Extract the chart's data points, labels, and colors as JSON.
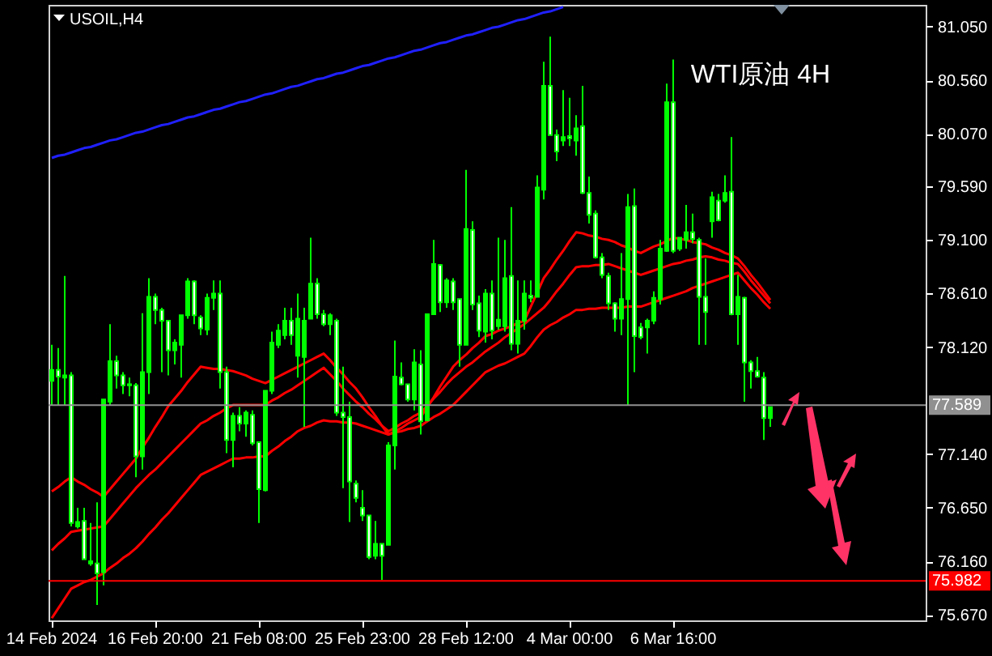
{
  "chart_data": {
    "type": "candlestick",
    "title": "USOIL,H4",
    "annotations": [
      "WTI原油 4H"
    ],
    "categories": [
      "14 Feb 2024",
      null,
      null,
      null,
      null,
      null,
      null,
      null,
      null,
      null,
      null,
      null,
      null,
      null,
      null,
      null,
      "16 Feb 20:00",
      null,
      null,
      null,
      null,
      null,
      null,
      null,
      null,
      null,
      null,
      null,
      null,
      null,
      null,
      null,
      "21 Feb 08:00",
      null,
      null,
      null,
      null,
      null,
      null,
      null,
      null,
      null,
      null,
      null,
      null,
      null,
      null,
      null,
      "25 Feb 23:00",
      null,
      null,
      null,
      null,
      null,
      null,
      null,
      null,
      null,
      null,
      null,
      null,
      null,
      null,
      null,
      "28 Feb 12:00",
      null,
      null,
      null,
      null,
      null,
      null,
      null,
      null,
      null,
      null,
      null,
      null,
      null,
      null,
      null,
      "4 Mar 00:00",
      null,
      null,
      null,
      null,
      null,
      null,
      null,
      null,
      null,
      null,
      null,
      null,
      null,
      null,
      null,
      "6 Mar 16:00",
      null,
      null,
      null,
      null,
      null,
      null,
      null,
      null,
      null,
      null,
      null,
      null,
      null,
      null,
      null
    ],
    "color": "#00ff00",
    "ohlc": [
      [
        77.81,
        78.14,
        77.59,
        77.91
      ],
      [
        77.91,
        78.11,
        77.59,
        77.85
      ],
      [
        77.84,
        78.77,
        77.59,
        77.86
      ],
      [
        77.86,
        77.89,
        76.48,
        76.51
      ],
      [
        76.48,
        76.65,
        76.46,
        76.52
      ],
      [
        76.53,
        76.65,
        76.18,
        76.18
      ],
      [
        76.14,
        76.51,
        76.12,
        76.16
      ],
      [
        76.14,
        76.7,
        75.76,
        76.05
      ],
      [
        76.06,
        77.64,
        75.94,
        77.64
      ],
      [
        77.62,
        78.33,
        77.59,
        77.99
      ],
      [
        77.99,
        78.04,
        77.74,
        77.86
      ],
      [
        77.86,
        77.89,
        77.69,
        77.77
      ],
      [
        77.77,
        77.84,
        77.67,
        77.78
      ],
      [
        77.77,
        77.79,
        76.93,
        77.12
      ],
      [
        77.12,
        78.43,
        77.0,
        77.89
      ],
      [
        77.89,
        78.75,
        77.69,
        78.58
      ],
      [
        78.58,
        78.61,
        78.33,
        78.46
      ],
      [
        78.46,
        78.48,
        77.89,
        78.36
      ],
      [
        78.36,
        78.36,
        77.86,
        78.09
      ],
      [
        78.09,
        78.19,
        77.96,
        78.16
      ],
      [
        78.14,
        78.41,
        77.84,
        78.41
      ],
      [
        78.41,
        78.75,
        78.38,
        78.72
      ],
      [
        78.72,
        78.73,
        78.33,
        78.41
      ],
      [
        78.39,
        78.41,
        78.23,
        78.29
      ],
      [
        78.28,
        78.61,
        78.23,
        78.57
      ],
      [
        78.57,
        78.73,
        78.46,
        78.61
      ],
      [
        78.61,
        78.73,
        77.74,
        77.89
      ],
      [
        77.89,
        77.94,
        77.15,
        77.27
      ],
      [
        77.27,
        77.52,
        77.02,
        77.49
      ],
      [
        77.49,
        77.57,
        77.35,
        77.42
      ],
      [
        77.42,
        77.54,
        77.3,
        77.52
      ],
      [
        77.5,
        77.54,
        77.22,
        77.24
      ],
      [
        77.25,
        77.25,
        76.51,
        76.82
      ],
      [
        76.81,
        77.72,
        76.8,
        77.72
      ],
      [
        77.72,
        78.26,
        77.69,
        78.16
      ],
      [
        78.14,
        78.33,
        78.11,
        78.27
      ],
      [
        78.23,
        78.48,
        78.19,
        78.36
      ],
      [
        78.36,
        78.48,
        78.14,
        78.23
      ],
      [
        78.04,
        78.61,
        77.84,
        78.38
      ],
      [
        78.03,
        78.48,
        77.39,
        78.36
      ],
      [
        78.38,
        79.12,
        78.38,
        78.7
      ],
      [
        78.7,
        78.75,
        78.38,
        78.42
      ],
      [
        78.42,
        78.46,
        78.31,
        78.33
      ],
      [
        78.33,
        78.43,
        78.23,
        78.41
      ],
      [
        78.36,
        78.38,
        77.49,
        77.52
      ],
      [
        77.52,
        77.94,
        76.83,
        77.48
      ],
      [
        77.48,
        77.62,
        76.52,
        76.89
      ],
      [
        76.87,
        76.9,
        76.7,
        76.74
      ],
      [
        76.65,
        76.81,
        76.53,
        76.58
      ],
      [
        76.58,
        76.58,
        76.18,
        76.2
      ],
      [
        76.21,
        76.53,
        76.18,
        76.32
      ],
      [
        76.32,
        76.32,
        75.99,
        76.21
      ],
      [
        76.31,
        77.25,
        76.31,
        77.22
      ],
      [
        77.22,
        78.18,
        77.0,
        77.85
      ],
      [
        77.84,
        77.98,
        77.77,
        77.78
      ],
      [
        77.78,
        77.78,
        77.62,
        77.64
      ],
      [
        77.64,
        78.1,
        77.54,
        77.98
      ],
      [
        77.96,
        78.09,
        77.32,
        77.44
      ],
      [
        77.45,
        78.42,
        77.44,
        78.42
      ],
      [
        78.42,
        79.1,
        78.42,
        78.88
      ],
      [
        78.87,
        78.88,
        78.44,
        78.53
      ],
      [
        78.53,
        78.75,
        78.48,
        78.73
      ],
      [
        78.72,
        78.75,
        78.46,
        78.53
      ],
      [
        78.56,
        78.56,
        77.94,
        78.14
      ],
      [
        78.14,
        79.74,
        78.14,
        79.2
      ],
      [
        79.19,
        79.27,
        78.46,
        78.51
      ],
      [
        78.52,
        78.59,
        78.21,
        78.27
      ],
      [
        78.26,
        78.65,
        78.16,
        78.61
      ],
      [
        78.61,
        78.73,
        78.19,
        78.27
      ],
      [
        78.31,
        79.12,
        78.28,
        78.37
      ],
      [
        78.31,
        79.1,
        78.26,
        78.75
      ],
      [
        78.77,
        79.4,
        78.09,
        78.15
      ],
      [
        78.15,
        78.73,
        78.06,
        78.36
      ],
      [
        78.36,
        78.73,
        78.28,
        78.61
      ],
      [
        78.59,
        78.73,
        78.53,
        78.57
      ],
      [
        78.58,
        79.69,
        78.58,
        79.58
      ],
      [
        79.56,
        80.73,
        79.47,
        80.51
      ],
      [
        80.51,
        80.96,
        80.06,
        80.06
      ],
      [
        80.06,
        80.11,
        79.82,
        79.91
      ],
      [
        80.01,
        80.47,
        79.96,
        80.04
      ],
      [
        80.05,
        80.4,
        79.96,
        80.03
      ],
      [
        80.01,
        80.24,
        79.87,
        80.12
      ],
      [
        80.14,
        80.51,
        79.52,
        79.53
      ],
      [
        79.53,
        79.68,
        79.25,
        79.33
      ],
      [
        79.34,
        79.37,
        78.93,
        78.94
      ],
      [
        78.94,
        78.98,
        78.75,
        78.78
      ],
      [
        78.77,
        78.8,
        78.46,
        78.52
      ],
      [
        78.52,
        78.53,
        78.26,
        78.38
      ],
      [
        78.38,
        78.98,
        78.23,
        78.56
      ],
      [
        78.56,
        79.52,
        77.59,
        79.4
      ],
      [
        79.41,
        79.57,
        77.89,
        78.22
      ],
      [
        78.3,
        78.34,
        78.19,
        78.21
      ],
      [
        78.3,
        78.38,
        78.06,
        78.36
      ],
      [
        78.36,
        78.63,
        78.33,
        78.57
      ],
      [
        78.56,
        79.1,
        78.51,
        79.02
      ],
      [
        79.0,
        80.53,
        78.99,
        80.36
      ],
      [
        80.36,
        80.75,
        78.98,
        79.0
      ],
      [
        79.02,
        79.12,
        79.0,
        79.12
      ],
      [
        79.1,
        79.42,
        79.02,
        79.17
      ],
      [
        79.17,
        79.34,
        79.07,
        79.11
      ],
      [
        79.1,
        79.12,
        78.14,
        78.58
      ],
      [
        78.58,
        78.93,
        78.14,
        78.44
      ],
      [
        79.27,
        79.54,
        79.12,
        79.49
      ],
      [
        79.46,
        79.52,
        79.27,
        79.28
      ],
      [
        79.46,
        79.69,
        79.44,
        79.53
      ],
      [
        79.54,
        80.04,
        78.41,
        78.42
      ],
      [
        78.42,
        78.78,
        78.14,
        78.58
      ],
      [
        78.57,
        78.58,
        77.62,
        77.98
      ],
      [
        77.98,
        78.0,
        77.74,
        77.9
      ],
      [
        77.9,
        78.03,
        77.84,
        77.85
      ],
      [
        77.84,
        77.89,
        77.27,
        77.47
      ],
      [
        77.47,
        77.57,
        77.39,
        77.57
      ]
    ],
    "series": [
      {
        "type": "line",
        "color": "#ff0000",
        "values": [
          76.8,
          76.84,
          76.89,
          76.93,
          76.89,
          76.86,
          76.82,
          76.79,
          76.75,
          76.82,
          76.89,
          76.96,
          77.03,
          77.1,
          77.2,
          77.29,
          77.39,
          77.48,
          77.58,
          77.65,
          77.72,
          77.8,
          77.87,
          77.94,
          77.93,
          77.92,
          77.92,
          77.91,
          77.9,
          77.88,
          77.86,
          77.83,
          77.81,
          77.79,
          77.82,
          77.85,
          77.88,
          77.91,
          77.94,
          77.97,
          78.0,
          78.03,
          78.06,
          78.0,
          77.93,
          77.87,
          77.8,
          77.74,
          77.66,
          77.57,
          77.49,
          77.4,
          77.32,
          77.35,
          77.38,
          77.42,
          77.45,
          77.48,
          77.57,
          77.66,
          77.76,
          77.85,
          77.94,
          78.0,
          78.05,
          78.11,
          78.16,
          78.22,
          78.24,
          78.27,
          78.29,
          78.31,
          78.34,
          78.36,
          78.49,
          78.62,
          78.75,
          78.83,
          78.92,
          79.0,
          79.09,
          79.17,
          79.16,
          79.14,
          79.13,
          79.11,
          79.1,
          79.08,
          79.05,
          79.03,
          79.0,
          78.98,
          79.01,
          79.04,
          79.06,
          79.09,
          79.12,
          79.11,
          79.1,
          79.08,
          79.07,
          79.06,
          79.03,
          79.01,
          78.98,
          78.96,
          78.93,
          78.86,
          78.78,
          78.71,
          78.63,
          78.55
        ]
      },
      {
        "type": "line",
        "color": "#ff0000",
        "values": [
          76.26,
          76.32,
          76.37,
          76.43,
          76.44,
          76.45,
          76.46,
          76.47,
          76.48,
          76.55,
          76.62,
          76.69,
          76.76,
          76.83,
          76.89,
          76.95,
          77.0,
          77.06,
          77.12,
          77.18,
          77.24,
          77.3,
          77.36,
          77.42,
          77.45,
          77.49,
          77.52,
          77.56,
          77.59,
          77.59,
          77.59,
          77.59,
          77.59,
          77.59,
          77.63,
          77.66,
          77.7,
          77.73,
          77.77,
          77.81,
          77.85,
          77.89,
          77.93,
          77.87,
          77.81,
          77.74,
          77.68,
          77.62,
          77.57,
          77.51,
          77.46,
          77.4,
          77.35,
          77.38,
          77.42,
          77.45,
          77.49,
          77.52,
          77.58,
          77.65,
          77.71,
          77.78,
          77.84,
          77.89,
          77.94,
          77.98,
          78.03,
          78.08,
          78.12,
          78.16,
          78.21,
          78.25,
          78.29,
          78.33,
          78.38,
          78.43,
          78.48,
          78.55,
          78.63,
          78.7,
          78.78,
          78.85,
          78.86,
          78.86,
          78.87,
          78.87,
          78.88,
          78.86,
          78.84,
          78.82,
          78.8,
          78.78,
          78.8,
          78.82,
          78.84,
          78.86,
          78.88,
          78.89,
          78.91,
          78.92,
          78.94,
          78.95,
          78.94,
          78.92,
          78.91,
          78.89,
          78.88,
          78.81,
          78.73,
          78.66,
          78.59,
          78.52
        ]
      },
      {
        "type": "line",
        "color": "#ff0000",
        "values": [
          75.64,
          75.73,
          75.82,
          75.91,
          75.94,
          75.97,
          75.99,
          76.02,
          76.05,
          76.1,
          76.14,
          76.19,
          76.23,
          76.28,
          76.34,
          76.41,
          76.47,
          76.54,
          76.6,
          76.67,
          76.74,
          76.81,
          76.88,
          76.95,
          76.98,
          77.01,
          77.04,
          77.07,
          77.1,
          77.1,
          77.11,
          77.11,
          77.12,
          77.12,
          77.17,
          77.21,
          77.26,
          77.3,
          77.35,
          77.38,
          77.4,
          77.43,
          77.45,
          77.44,
          77.44,
          77.43,
          77.43,
          77.42,
          77.4,
          77.38,
          77.36,
          77.34,
          77.32,
          77.34,
          77.35,
          77.37,
          77.38,
          77.4,
          77.44,
          77.48,
          77.51,
          77.55,
          77.59,
          77.65,
          77.71,
          77.77,
          77.83,
          77.89,
          77.92,
          77.95,
          77.97,
          78.0,
          78.03,
          78.06,
          78.13,
          78.21,
          78.28,
          78.32,
          78.35,
          78.39,
          78.42,
          78.46,
          78.46,
          78.47,
          78.47,
          78.48,
          78.48,
          78.48,
          78.48,
          78.49,
          78.49,
          78.49,
          78.51,
          78.53,
          78.55,
          78.57,
          78.59,
          78.61,
          78.63,
          78.66,
          78.68,
          78.7,
          78.72,
          78.74,
          78.76,
          78.78,
          78.8,
          78.73,
          78.66,
          78.6,
          78.53,
          78.47
        ]
      },
      {
        "type": "line",
        "color": "#2020ff",
        "values": [
          79.85,
          79.87,
          79.88,
          79.9,
          79.92,
          79.94,
          79.95,
          79.97,
          79.99,
          80.01,
          80.02,
          80.04,
          80.06,
          80.08,
          80.09,
          80.11,
          80.13,
          80.15,
          80.16,
          80.18,
          80.2,
          80.22,
          80.23,
          80.25,
          80.27,
          80.29,
          80.3,
          80.32,
          80.34,
          80.36,
          80.37,
          80.39,
          80.41,
          80.43,
          80.44,
          80.46,
          80.48,
          80.5,
          80.51,
          80.53,
          80.55,
          80.57,
          80.58,
          80.6,
          80.62,
          80.63,
          80.65,
          80.67,
          80.69,
          80.7,
          80.72,
          80.74,
          80.76,
          80.77,
          80.79,
          80.81,
          80.83,
          80.84,
          80.86,
          80.88,
          80.9,
          80.91,
          80.93,
          80.95,
          80.97,
          80.98,
          81.0,
          81.02,
          81.04,
          81.05,
          81.07,
          81.09,
          81.11,
          81.12,
          81.14,
          81.16,
          81.18,
          81.19,
          81.21,
          81.23,
          null,
          null,
          null,
          null,
          null,
          null,
          null,
          null,
          null,
          null,
          null,
          null,
          null,
          null,
          null,
          null,
          null,
          null,
          null,
          null,
          null,
          null,
          null,
          null,
          null,
          null,
          null,
          null,
          null,
          null,
          null,
          null
        ]
      }
    ],
    "ylim": [
      75.62,
      81.25
    ],
    "yticks": [
      {
        "value": 81.05,
        "label": "81.050"
      },
      {
        "value": 80.56,
        "label": "80.560"
      },
      {
        "value": 80.07,
        "label": "80.070"
      },
      {
        "value": 79.59,
        "label": "79.590"
      },
      {
        "value": 79.1,
        "label": "79.100"
      },
      {
        "value": 78.61,
        "label": "78.610"
      },
      {
        "value": 78.12,
        "label": "78.120"
      },
      {
        "value": 77.14,
        "label": "77.140"
      },
      {
        "value": 76.65,
        "label": "76.650"
      },
      {
        "value": 76.16,
        "label": "76.160"
      },
      {
        "value": 75.67,
        "label": "75.670"
      }
    ],
    "ref_lines": [
      {
        "axis": "y",
        "value": 77.589,
        "label": "77.589",
        "color": "#909090"
      },
      {
        "axis": "y",
        "value": 75.982,
        "label": "75.982",
        "color": "#ff0000"
      }
    ]
  }
}
